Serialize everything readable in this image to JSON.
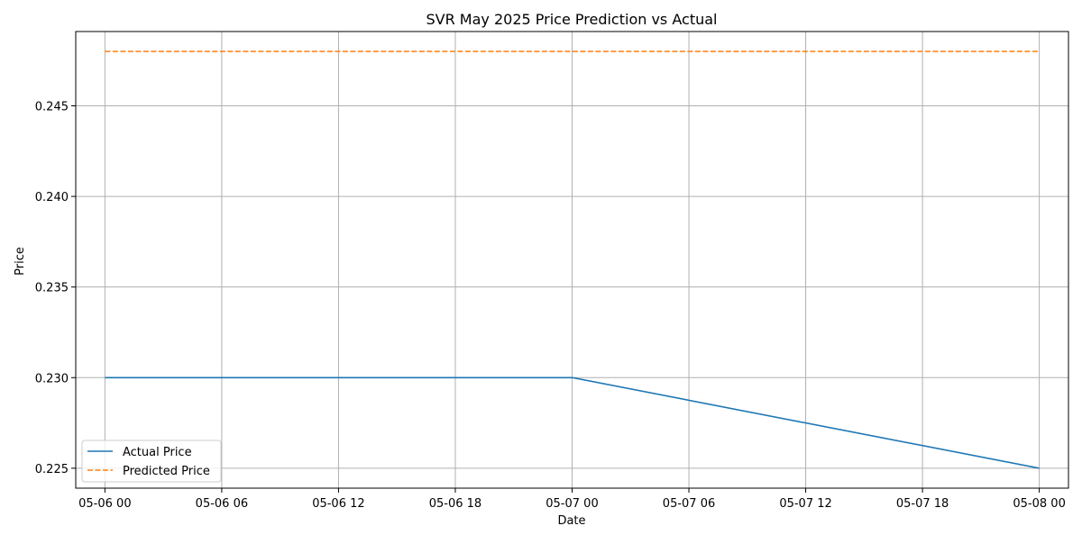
{
  "chart_data": {
    "type": "line",
    "title": "SVR May 2025 Price Prediction vs Actual",
    "xlabel": "Date",
    "ylabel": "Price",
    "x_type": "datetime",
    "xlim": [
      "2025-05-05T22:30",
      "2025-05-08T01:30"
    ],
    "ylim": [
      0.2239,
      0.2491
    ],
    "x_ticks": [
      {
        "value": "2025-05-06T00:00",
        "label": "05-06 00"
      },
      {
        "value": "2025-05-06T06:00",
        "label": "05-06 06"
      },
      {
        "value": "2025-05-06T12:00",
        "label": "05-06 12"
      },
      {
        "value": "2025-05-06T18:00",
        "label": "05-06 18"
      },
      {
        "value": "2025-05-07T00:00",
        "label": "05-07 00"
      },
      {
        "value": "2025-05-07T06:00",
        "label": "05-07 06"
      },
      {
        "value": "2025-05-07T12:00",
        "label": "05-07 12"
      },
      {
        "value": "2025-05-07T18:00",
        "label": "05-07 18"
      },
      {
        "value": "2025-05-08T00:00",
        "label": "05-08 00"
      }
    ],
    "y_ticks": [
      {
        "value": 0.225,
        "label": "0.225"
      },
      {
        "value": 0.23,
        "label": "0.230"
      },
      {
        "value": 0.235,
        "label": "0.235"
      },
      {
        "value": 0.24,
        "label": "0.240"
      },
      {
        "value": 0.245,
        "label": "0.245"
      }
    ],
    "grid": true,
    "legend_position": "lower-left",
    "series": [
      {
        "name": "Actual Price",
        "color": "#1f77b4",
        "style": "solid",
        "points": [
          {
            "x": "2025-05-06T00:00",
            "y": 0.23
          },
          {
            "x": "2025-05-07T00:00",
            "y": 0.23
          },
          {
            "x": "2025-05-08T00:00",
            "y": 0.225
          }
        ]
      },
      {
        "name": "Predicted Price",
        "color": "#ff7f0e",
        "style": "dashed",
        "points": [
          {
            "x": "2025-05-06T00:00",
            "y": 0.248
          },
          {
            "x": "2025-05-07T00:00",
            "y": 0.248
          },
          {
            "x": "2025-05-08T00:00",
            "y": 0.248
          }
        ]
      }
    ]
  }
}
